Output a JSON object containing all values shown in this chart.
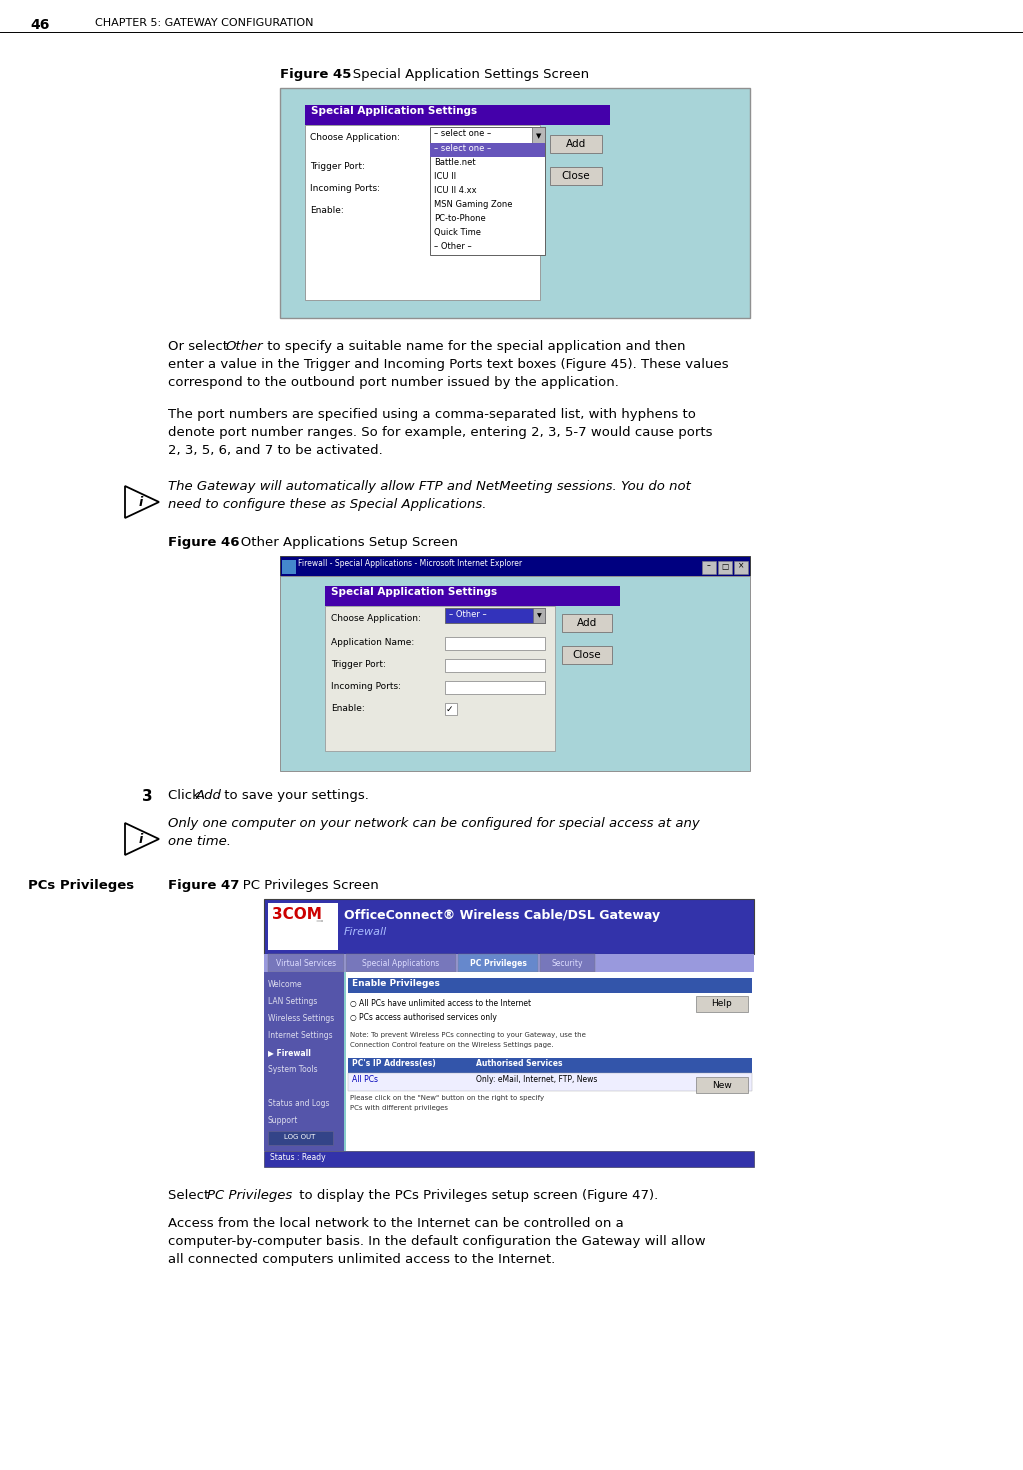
{
  "page_number": "46",
  "chapter_header": "CHAPTER 5: GATEWAY CONFIGURATION",
  "background_color": "#ffffff",
  "fig45_label": "Figure 45",
  "fig45_title": "   Special Application Settings Screen",
  "fig46_label": "Figure 46",
  "fig46_title": "   Other Applications Setup Screen",
  "fig47_label": "Figure 47",
  "fig47_title": "   PC Privileges Screen",
  "pcs_privileges_label": "PCs Privileges",
  "teal_bg": "#a8d4d8",
  "teal_bg2": "#9ec8d0",
  "purple_header": "#4400aa",
  "purple_selected": "#6655bb",
  "purple_dark": "#330088",
  "win_title_bg": "#000080",
  "button_bg": "#d4d0c8",
  "screen_border": "#808080",
  "fig47_header_bg": "#3333aa",
  "fig47_tab_active": "#6699cc",
  "fig47_left_bg": "#6666aa",
  "fig47_content_bg": "#99cccc",
  "fig47_table_header": "#3366aa"
}
